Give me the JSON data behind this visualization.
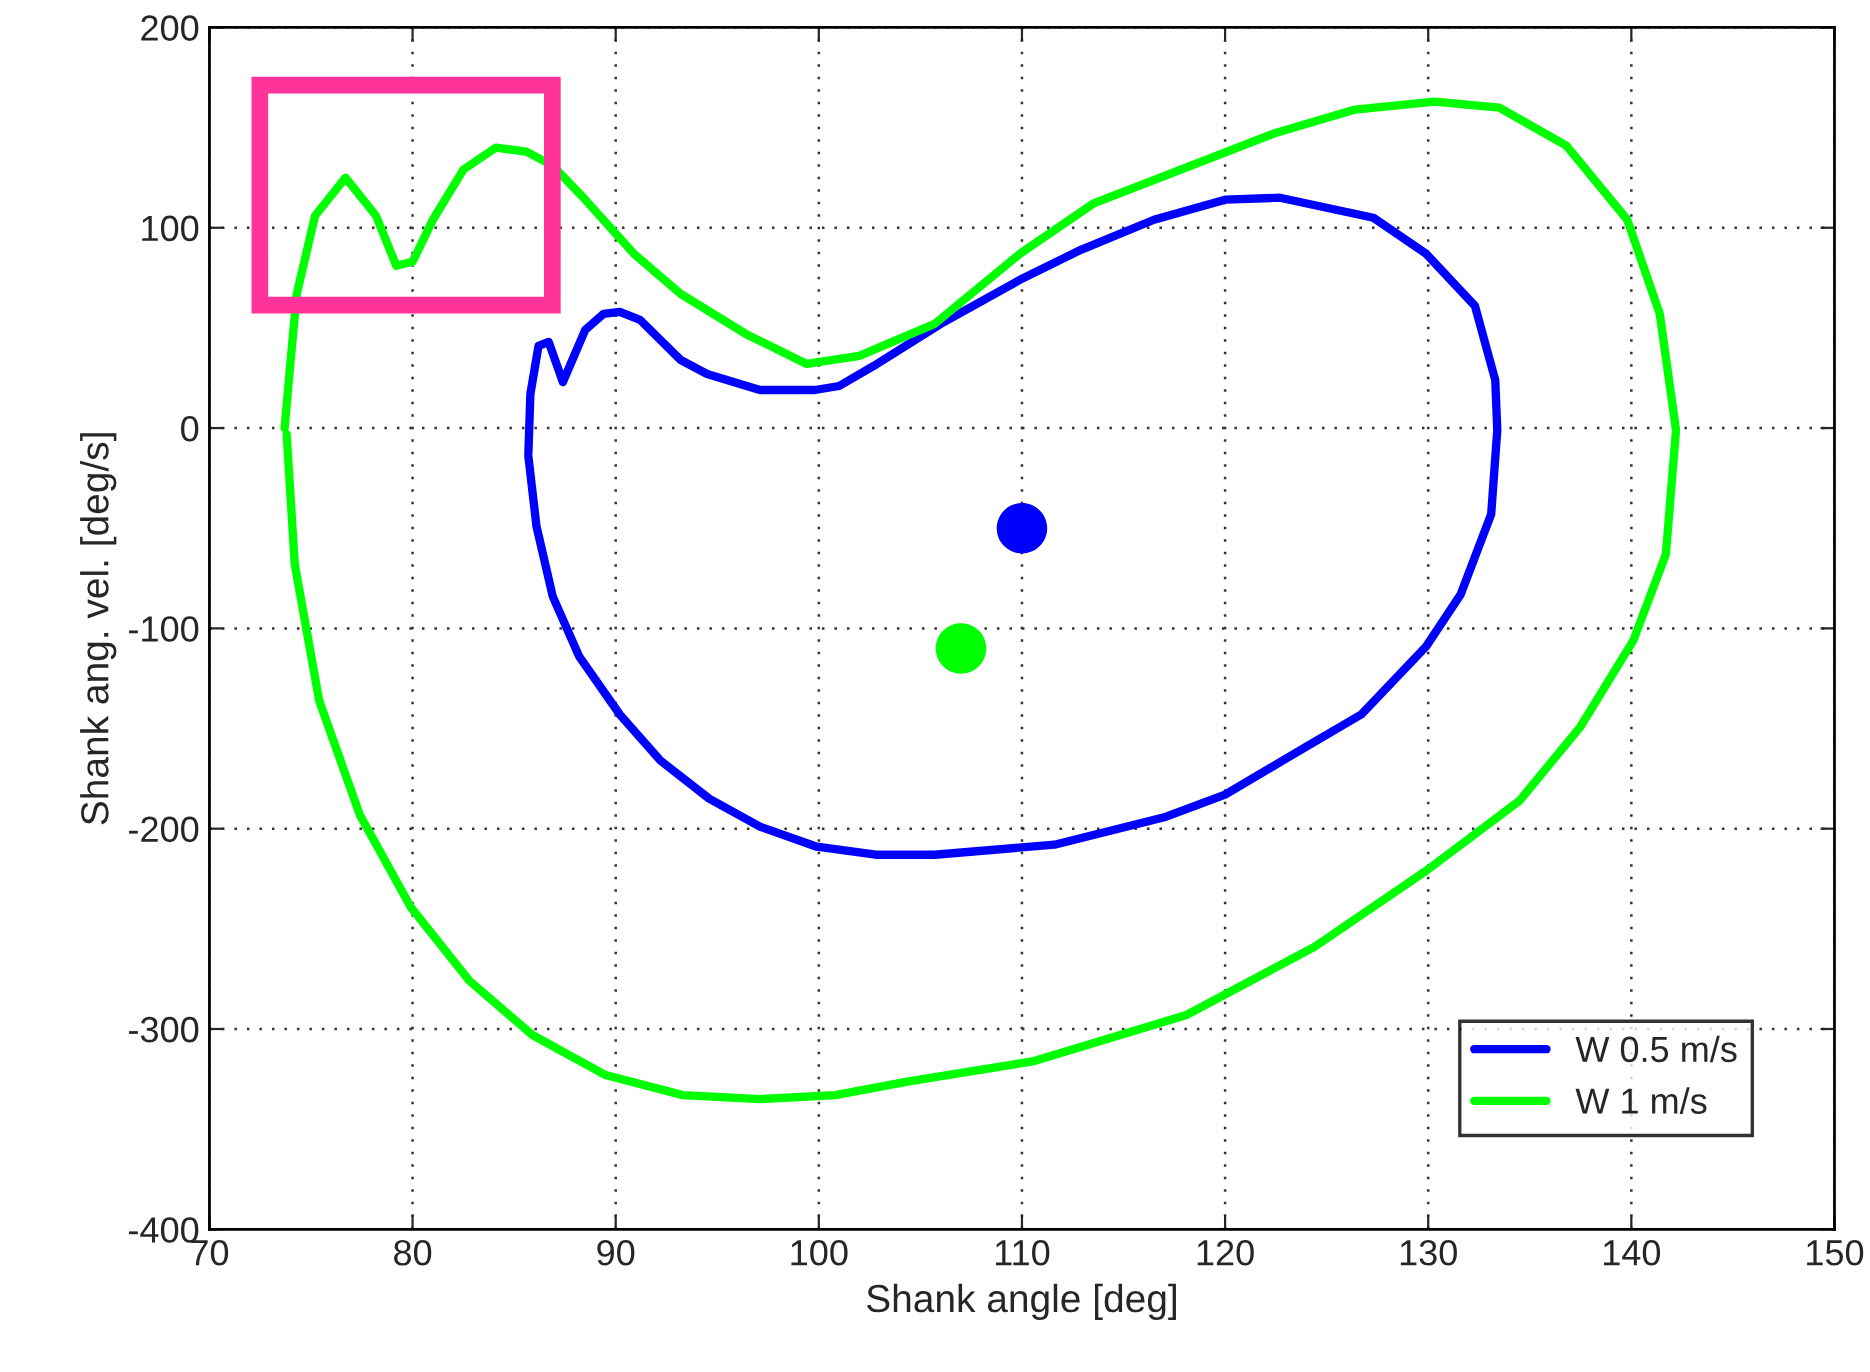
{
  "chart_data": {
    "type": "line",
    "xlabel": "Shank angle [deg]",
    "ylabel": "Shank ang. vel. [deg/s]",
    "xlim": [
      70,
      150
    ],
    "ylim": [
      -400,
      200
    ],
    "xticks": [
      70,
      80,
      90,
      100,
      110,
      120,
      130,
      140,
      150
    ],
    "yticks": [
      -400,
      -300,
      -200,
      -100,
      0,
      100,
      200
    ],
    "grid": true,
    "legend": "bottom right",
    "line_style": "solid",
    "marker": "none",
    "series": [
      {
        "name": "W 0.5 m/s",
        "color": "#0000ff",
        "x": [
          85.7,
          85.8,
          86.2,
          86.7,
          87.4,
          88.5,
          89.4,
          90.2,
          91.2,
          93.2,
          94.5,
          97.1,
          99.8,
          101.0,
          102.7,
          106.0,
          109.9,
          112.9,
          116.5,
          120.0,
          122.7,
          127.3,
          129.9,
          132.3,
          133.3,
          133.4,
          133.1,
          131.6,
          129.9,
          126.7,
          124.0,
          120.0,
          117.1,
          111.6,
          105.7,
          102.8,
          99.9,
          97.1,
          94.6,
          92.2,
          90.2,
          88.2,
          86.9,
          86.1,
          85.7
        ],
        "values": [
          -13,
          17,
          41,
          43,
          23,
          49,
          57,
          58,
          54,
          34,
          27,
          19,
          19,
          21,
          31,
          52,
          74,
          89,
          104,
          114,
          115,
          105,
          87,
          61,
          24,
          -1,
          -43,
          -83,
          -109,
          -143,
          -159,
          -183,
          -194,
          -208,
          -213,
          -213,
          -209,
          -199,
          -185,
          -166,
          -143,
          -114,
          -84,
          -49,
          -14
        ]
      },
      {
        "name": "W 1 m/s",
        "color": "#00ff00",
        "x": [
          73.7,
          74.0,
          74.3,
          75.2,
          76.7,
          78.2,
          79.2,
          80.0,
          81.0,
          82.5,
          84.1,
          85.6,
          86.9,
          88.5,
          90.9,
          93.2,
          96.4,
          99.4,
          102.0,
          105.7,
          109.9,
          113.5,
          122.4,
          126.4,
          130.3,
          133.5,
          136.8,
          139.8,
          141.4,
          142.2,
          141.7,
          140.1,
          137.5,
          134.5,
          129.9,
          124.4,
          118.1,
          110.6,
          104.5,
          100.8,
          97.1,
          93.3,
          89.5,
          85.9,
          82.8,
          79.9,
          77.4,
          75.4,
          74.2,
          73.8
        ],
        "values": [
          0,
          34,
          67,
          106,
          125,
          106,
          81,
          83,
          104,
          129,
          140,
          138,
          131,
          114,
          87,
          67,
          47,
          32,
          36,
          52,
          87,
          112,
          147,
          159,
          163,
          160,
          141,
          104,
          57,
          -1,
          -63,
          -106,
          -149,
          -186,
          -221,
          -259,
          -293,
          -316,
          -326,
          -333,
          -335,
          -333,
          -323,
          -303,
          -276,
          -239,
          -193,
          -136,
          -68,
          -3
        ]
      },
      {
        "type": "scatter",
        "color": "#0000ff",
        "marker": "circle",
        "x": [
          110
        ],
        "values": [
          -50
        ]
      },
      {
        "type": "scatter",
        "color": "#00ff00",
        "marker": "circle",
        "x": [
          107
        ],
        "values": [
          -110
        ]
      }
    ]
  }
}
